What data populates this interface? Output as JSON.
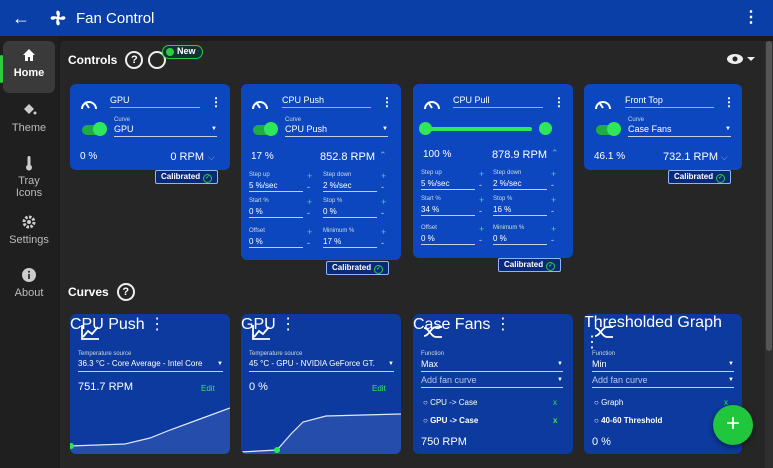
{
  "app": {
    "title": "Fan Control"
  },
  "nav": [
    {
      "label": "Home",
      "icon": "home-icon"
    },
    {
      "label": "Theme",
      "icon": "paint-bucket-icon"
    },
    {
      "label": "Tray Icons",
      "icon": "thermometer-icon"
    },
    {
      "label": "Settings",
      "icon": "gear-icon"
    },
    {
      "label": "About",
      "icon": "info-icon"
    }
  ],
  "sections": {
    "controls": "Controls",
    "curves": "Curves",
    "new_badge": "New",
    "help": "?"
  },
  "controls": [
    {
      "name": "GPU",
      "curve_label": "Curve",
      "curve": "GPU",
      "percent": "0 %",
      "rpm": "0 RPM",
      "calibrated": "Calibrated"
    },
    {
      "name": "CPU Push",
      "curve_label": "Curve",
      "curve": "CPU Push",
      "percent": "17 %",
      "rpm": "852.8 RPM",
      "calibrated": "Calibrated",
      "params": [
        {
          "label": "Step up",
          "value": "5 %/sec"
        },
        {
          "label": "Step down",
          "value": "2 %/sec"
        },
        {
          "label": "Start %",
          "value": "0 %"
        },
        {
          "label": "Stop %",
          "value": "0 %"
        },
        {
          "label": "Offset",
          "value": "0 %"
        },
        {
          "label": "Minimum %",
          "value": "17 %"
        }
      ]
    },
    {
      "name": "CPU Pull",
      "percent": "100 %",
      "rpm": "878.9 RPM",
      "calibrated": "Calibrated",
      "slider_value": 100,
      "params": [
        {
          "label": "Step up",
          "value": "5 %/sec"
        },
        {
          "label": "Step down",
          "value": "2 %/sec"
        },
        {
          "label": "Start %",
          "value": "34 %"
        },
        {
          "label": "Stop %",
          "value": "16 %"
        },
        {
          "label": "Offset",
          "value": "0 %"
        },
        {
          "label": "Minimum %",
          "value": "0 %"
        }
      ]
    },
    {
      "name": "Front Top",
      "curve_label": "Curve",
      "curve": "Case Fans",
      "percent": "46.1 %",
      "rpm": "732.1 RPM",
      "calibrated": "Calibrated"
    }
  ],
  "curves": [
    {
      "name": "CPU Push",
      "source_label": "Temperature source",
      "source": "36.3 °C - Core Average - Intel Core",
      "value": "751.7 RPM",
      "edit": "Edit"
    },
    {
      "name": "GPU",
      "source_label": "Temperature source",
      "source": "45 °C - GPU - NVIDIA GeForce GT.",
      "value": "0 %",
      "edit": "Edit"
    },
    {
      "name": "Case Fans",
      "function_label": "Function",
      "function": "Max",
      "add": "Add fan curve",
      "items": [
        {
          "label": "CPU -> Case",
          "bold": false
        },
        {
          "label": "GPU -> Case",
          "bold": true
        }
      ],
      "value": "750 RPM"
    },
    {
      "name": "Thresholded Graph",
      "function_label": "Function",
      "function": "Min",
      "add": "Add fan curve",
      "items": [
        {
          "label": "Graph",
          "bold": false
        },
        {
          "label": "40-60 Threshold",
          "bold": true
        }
      ],
      "value": "0 %"
    }
  ],
  "colors": {
    "accent": "#2ecc40",
    "card": "#0d47bf",
    "topbar": "#0a3fa8"
  }
}
